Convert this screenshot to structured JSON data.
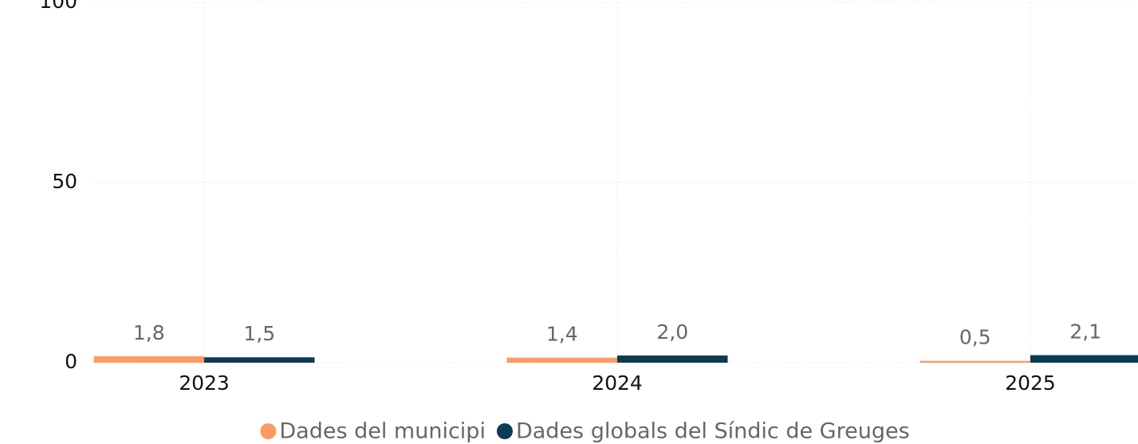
{
  "chart_data": {
    "type": "bar",
    "categories": [
      "2023",
      "2024",
      "2025"
    ],
    "series": [
      {
        "name": "Dades del municipi",
        "color": "#fd9a63",
        "values": [
          1.8,
          1.4,
          0.5
        ],
        "value_labels": [
          "1,8",
          "1,4",
          "0,5"
        ]
      },
      {
        "name": "Dades globals del Síndic de Greuges",
        "color": "#0c3c55",
        "values": [
          1.5,
          2.0,
          2.1
        ],
        "value_labels": [
          "1,5",
          "2,0",
          "2,1"
        ]
      }
    ],
    "ylim": [
      0,
      100
    ],
    "yticks": [
      0,
      50,
      100
    ],
    "grid": true,
    "legend": "bottom"
  }
}
